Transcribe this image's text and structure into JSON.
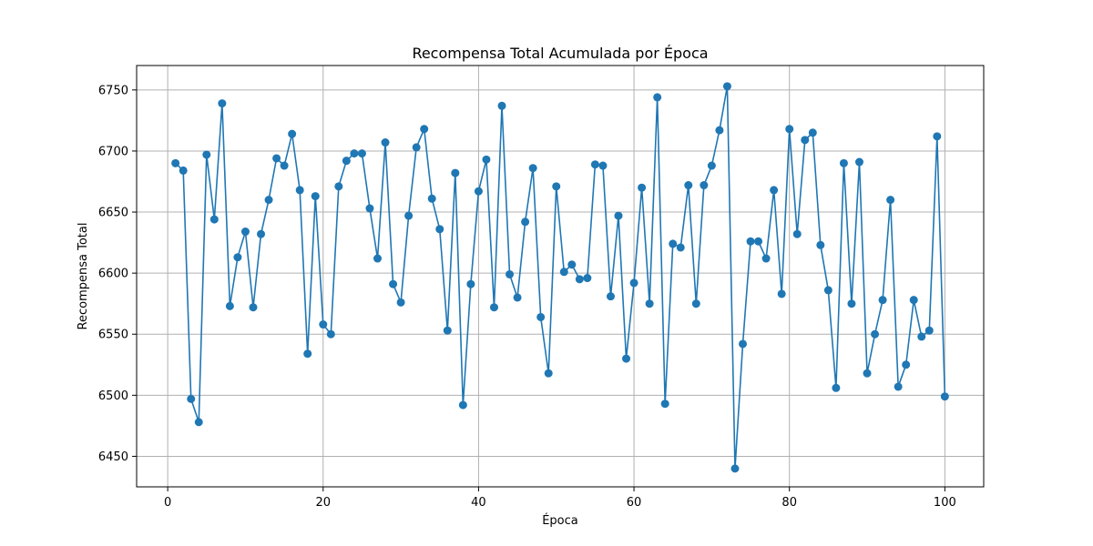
{
  "chart_data": {
    "type": "line",
    "title": "Recompensa Total Acumulada por Época",
    "xlabel": "Época",
    "ylabel": "Recompensa Total",
    "xlim": [
      -4,
      105
    ],
    "ylim": [
      6425,
      6770
    ],
    "xticks": [
      0,
      20,
      40,
      60,
      80,
      100
    ],
    "yticks": [
      6450,
      6500,
      6550,
      6600,
      6650,
      6700,
      6750
    ],
    "grid": true,
    "marker": "circle",
    "line_color": "#1f77b4",
    "series": [
      {
        "x": [
          1,
          2,
          3,
          4,
          5,
          6,
          7,
          8,
          9,
          10,
          11,
          12,
          13,
          14,
          15,
          16,
          17,
          18,
          19,
          20,
          21,
          22,
          23,
          24,
          25,
          26,
          27,
          28,
          29,
          30,
          31,
          32,
          33,
          34,
          35,
          36,
          37,
          38,
          39,
          40,
          41,
          42,
          43,
          44,
          45,
          46,
          47,
          48,
          49,
          50,
          51,
          52,
          53,
          54,
          55,
          56,
          57,
          58,
          59,
          60,
          61,
          62,
          63,
          64,
          65,
          66,
          67,
          68,
          69,
          70,
          71,
          72,
          73,
          74,
          75,
          76,
          77,
          78,
          79,
          80,
          81,
          82,
          83,
          84,
          85,
          86,
          87,
          88,
          89,
          90,
          91,
          92,
          93,
          94,
          95,
          96,
          97,
          98,
          99,
          100
        ],
        "values": [
          6690,
          6684,
          6497,
          6478,
          6697,
          6644,
          6739,
          6573,
          6613,
          6634,
          6572,
          6632,
          6660,
          6694,
          6688,
          6714,
          6668,
          6534,
          6663,
          6558,
          6550,
          6671,
          6692,
          6698,
          6698,
          6653,
          6612,
          6707,
          6591,
          6576,
          6647,
          6703,
          6718,
          6661,
          6636,
          6553,
          6682,
          6492,
          6591,
          6667,
          6693,
          6572,
          6737,
          6599,
          6580,
          6642,
          6686,
          6564,
          6518,
          6671,
          6601,
          6607,
          6595,
          6596,
          6689,
          6688,
          6581,
          6647,
          6530,
          6592,
          6670,
          6575,
          6744,
          6493,
          6624,
          6621,
          6672,
          6575,
          6672,
          6688,
          6717,
          6753,
          6440,
          6542,
          6626,
          6626,
          6612,
          6668,
          6583,
          6718,
          6632,
          6709,
          6715,
          6623,
          6586,
          6506,
          6690,
          6575,
          6691,
          6518,
          6550,
          6578,
          6660,
          6507,
          6525,
          6578,
          6548,
          6553,
          6712,
          6499
        ]
      }
    ]
  }
}
